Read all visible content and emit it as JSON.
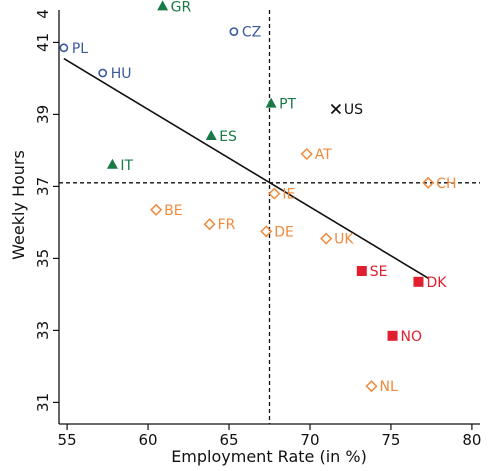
{
  "chart_data": {
    "type": "scatter",
    "xlabel": "Employment Rate (in %)",
    "ylabel": "Weekly Hours",
    "xlim": [
      54.5,
      80.5
    ],
    "ylim": [
      30.4,
      41.9
    ],
    "x_ticks": [
      55,
      60,
      65,
      70,
      75,
      80
    ],
    "y_ticks": [
      31,
      33,
      35,
      37,
      39,
      41
    ],
    "y_tick_labels": [
      "31",
      "33",
      "35",
      "37",
      "39",
      "41"
    ],
    "top_clipped_label": "4",
    "grid": false,
    "reference_lines": {
      "x": 67.5,
      "y": 37.1
    },
    "fit_line": {
      "x": [
        54.8,
        77.3
      ],
      "y": [
        40.55,
        34.45
      ]
    },
    "groups": [
      {
        "marker": "triangle",
        "color": "#1a7a45",
        "points": [
          {
            "label": "GR",
            "x": 60.9,
            "y": 42.0
          },
          {
            "label": "PT",
            "x": 67.6,
            "y": 39.3
          },
          {
            "label": "ES",
            "x": 63.9,
            "y": 38.4
          },
          {
            "label": "IT",
            "x": 57.8,
            "y": 37.6
          }
        ]
      },
      {
        "marker": "circle",
        "color": "#3a5aa0",
        "points": [
          {
            "label": "CZ",
            "x": 65.3,
            "y": 41.3
          },
          {
            "label": "PL",
            "x": 54.8,
            "y": 40.85
          },
          {
            "label": "HU",
            "x": 57.2,
            "y": 40.15
          }
        ]
      },
      {
        "marker": "cross",
        "color": "#111111",
        "points": [
          {
            "label": "US",
            "x": 71.6,
            "y": 39.15
          }
        ]
      },
      {
        "marker": "diamond",
        "color": "#f08a3c",
        "points": [
          {
            "label": "AT",
            "x": 69.8,
            "y": 37.9
          },
          {
            "label": "CH",
            "x": 77.3,
            "y": 37.1
          },
          {
            "label": "IE",
            "x": 67.8,
            "y": 36.8
          },
          {
            "label": "BE",
            "x": 60.5,
            "y": 36.35
          },
          {
            "label": "FR",
            "x": 63.8,
            "y": 35.95
          },
          {
            "label": "DE",
            "x": 67.3,
            "y": 35.75
          },
          {
            "label": "UK",
            "x": 71.0,
            "y": 35.55
          },
          {
            "label": "NL",
            "x": 73.8,
            "y": 31.45
          }
        ]
      },
      {
        "marker": "square",
        "color": "#e0202e",
        "points": [
          {
            "label": "SE",
            "x": 73.2,
            "y": 34.65
          },
          {
            "label": "DK",
            "x": 76.7,
            "y": 34.35
          },
          {
            "label": "NO",
            "x": 75.1,
            "y": 32.85
          }
        ]
      }
    ]
  }
}
